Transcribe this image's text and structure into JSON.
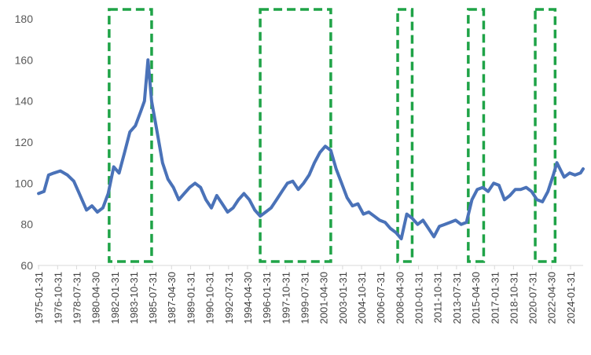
{
  "chart_data": {
    "type": "line",
    "title": "",
    "xlabel": "",
    "ylabel": "",
    "ylim": [
      60,
      180
    ],
    "yticks": [
      60,
      80,
      100,
      120,
      140,
      160,
      180
    ],
    "grid": false,
    "legend": "none",
    "x_tick_labels": [
      "1975-01-31",
      "1976-10-31",
      "1978-07-31",
      "1980-04-30",
      "1982-01-31",
      "1983-10-31",
      "1985-07-31",
      "1987-04-30",
      "1989-01-31",
      "1990-10-31",
      "1992-07-31",
      "1994-04-30",
      "1996-01-31",
      "1997-10-31",
      "1999-07-31",
      "2001-04-30",
      "2003-01-31",
      "2004-10-31",
      "2006-07-31",
      "2008-04-30",
      "2010-01-31",
      "2011-10-31",
      "2013-07-31",
      "2015-04-30",
      "2017-01-31",
      "2018-10-31",
      "2020-07-31",
      "2022-04-30",
      "2024-01-31"
    ],
    "series": [
      {
        "color": "#4a72b8",
        "points": [
          [
            "1975-01-31",
            95
          ],
          [
            "1975-07-31",
            96
          ],
          [
            "1975-12-31",
            104
          ],
          [
            "1976-06-30",
            105
          ],
          [
            "1977-01-31",
            106
          ],
          [
            "1977-09-30",
            104
          ],
          [
            "1978-04-30",
            101
          ],
          [
            "1978-10-31",
            95
          ],
          [
            "1979-03-31",
            90
          ],
          [
            "1979-06-30",
            87
          ],
          [
            "1979-12-31",
            89
          ],
          [
            "1980-06-30",
            86
          ],
          [
            "1980-12-31",
            88
          ],
          [
            "1981-06-30",
            95
          ],
          [
            "1981-12-31",
            108
          ],
          [
            "1982-06-30",
            105
          ],
          [
            "1982-12-31",
            115
          ],
          [
            "1983-06-30",
            125
          ],
          [
            "1983-12-31",
            128
          ],
          [
            "1984-06-30",
            135
          ],
          [
            "1984-10-31",
            140
          ],
          [
            "1985-02-28",
            160
          ],
          [
            "1985-06-30",
            140
          ],
          [
            "1985-12-31",
            125
          ],
          [
            "1986-06-30",
            110
          ],
          [
            "1986-12-31",
            102
          ],
          [
            "1987-06-30",
            98
          ],
          [
            "1987-12-31",
            92
          ],
          [
            "1988-06-30",
            95
          ],
          [
            "1988-12-31",
            98
          ],
          [
            "1989-06-30",
            100
          ],
          [
            "1989-12-31",
            98
          ],
          [
            "1990-06-30",
            92
          ],
          [
            "1990-12-31",
            88
          ],
          [
            "1991-06-30",
            94
          ],
          [
            "1991-12-31",
            90
          ],
          [
            "1992-06-30",
            86
          ],
          [
            "1992-12-31",
            88
          ],
          [
            "1993-06-30",
            92
          ],
          [
            "1993-12-31",
            95
          ],
          [
            "1994-06-30",
            92
          ],
          [
            "1994-12-31",
            87
          ],
          [
            "1995-06-30",
            84
          ],
          [
            "1995-12-31",
            86
          ],
          [
            "1996-06-30",
            88
          ],
          [
            "1996-12-31",
            92
          ],
          [
            "1997-06-30",
            96
          ],
          [
            "1997-12-31",
            100
          ],
          [
            "1998-06-30",
            101
          ],
          [
            "1998-12-31",
            97
          ],
          [
            "1999-06-30",
            100
          ],
          [
            "1999-12-31",
            104
          ],
          [
            "2000-06-30",
            110
          ],
          [
            "2000-12-31",
            115
          ],
          [
            "2001-06-30",
            118
          ],
          [
            "2001-12-31",
            116
          ],
          [
            "2002-06-30",
            107
          ],
          [
            "2002-12-31",
            100
          ],
          [
            "2003-06-30",
            93
          ],
          [
            "2003-12-31",
            89
          ],
          [
            "2004-06-30",
            90
          ],
          [
            "2004-12-31",
            85
          ],
          [
            "2005-06-30",
            86
          ],
          [
            "2005-12-31",
            84
          ],
          [
            "2006-06-30",
            82
          ],
          [
            "2006-12-31",
            81
          ],
          [
            "2007-06-30",
            78
          ],
          [
            "2007-12-31",
            76
          ],
          [
            "2008-06-30",
            73
          ],
          [
            "2008-12-31",
            85
          ],
          [
            "2009-06-30",
            83
          ],
          [
            "2009-12-31",
            80
          ],
          [
            "2010-06-30",
            82
          ],
          [
            "2010-12-31",
            78
          ],
          [
            "2011-06-30",
            74
          ],
          [
            "2011-12-31",
            79
          ],
          [
            "2012-06-30",
            80
          ],
          [
            "2012-12-31",
            81
          ],
          [
            "2013-06-30",
            82
          ],
          [
            "2013-12-31",
            80
          ],
          [
            "2014-06-30",
            81
          ],
          [
            "2014-12-31",
            92
          ],
          [
            "2015-06-30",
            97
          ],
          [
            "2015-12-31",
            98
          ],
          [
            "2016-06-30",
            96
          ],
          [
            "2016-12-31",
            100
          ],
          [
            "2017-06-30",
            99
          ],
          [
            "2017-12-31",
            92
          ],
          [
            "2018-06-30",
            94
          ],
          [
            "2018-12-31",
            97
          ],
          [
            "2019-06-30",
            97
          ],
          [
            "2019-12-31",
            98
          ],
          [
            "2020-06-30",
            96
          ],
          [
            "2020-12-31",
            92
          ],
          [
            "2021-06-30",
            91
          ],
          [
            "2021-12-31",
            96
          ],
          [
            "2022-06-30",
            104
          ],
          [
            "2022-10-31",
            110
          ],
          [
            "2023-06-30",
            103
          ],
          [
            "2023-12-31",
            105
          ],
          [
            "2024-06-30",
            104
          ],
          [
            "2024-12-31",
            105
          ],
          [
            "2025-03-31",
            107
          ]
        ]
      }
    ],
    "highlight_boxes": [
      {
        "start": "1981-07-31",
        "end": "1985-06-30",
        "color": "#1fa347"
      },
      {
        "start": "1995-06-30",
        "end": "2001-12-31",
        "color": "#1fa347"
      },
      {
        "start": "2008-02-29",
        "end": "2009-06-30",
        "color": "#1fa347"
      },
      {
        "start": "2014-08-31",
        "end": "2016-01-31",
        "color": "#1fa347"
      },
      {
        "start": "2020-10-31",
        "end": "2022-08-31",
        "color": "#1fa347"
      }
    ]
  }
}
